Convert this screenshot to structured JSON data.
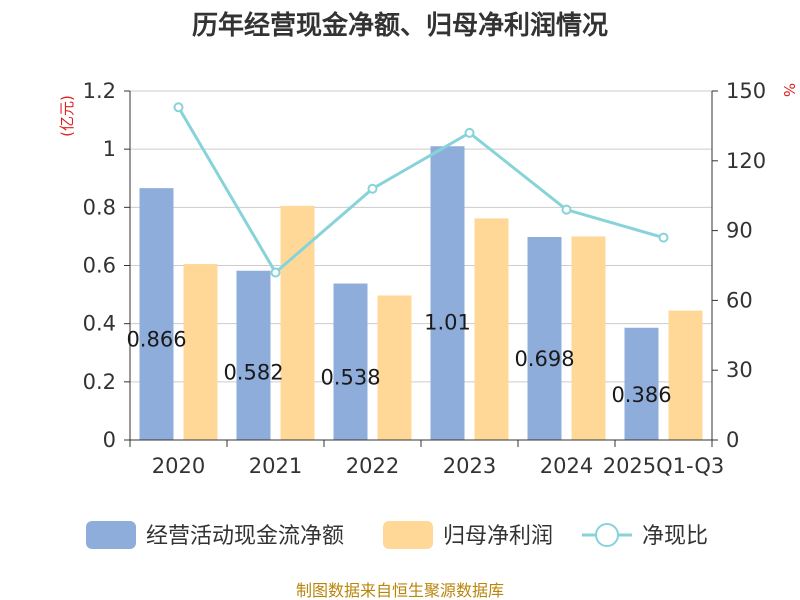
{
  "chart_data": {
    "type": "bar",
    "title": "历年经营现金净额、归母净利润情况",
    "categories": [
      "2020",
      "2021",
      "2022",
      "2023",
      "2024",
      "2025Q1-Q3"
    ],
    "y_left": {
      "unit": "(亿元)",
      "ylim": [
        0,
        1.2
      ],
      "ticks": [
        "0",
        "0.2",
        "0.4",
        "0.6",
        "0.8",
        "1",
        "1.2"
      ]
    },
    "y_right": {
      "unit": "%",
      "ylim": [
        0,
        150
      ],
      "ticks": [
        "0",
        "30",
        "60",
        "90",
        "120",
        "150"
      ]
    },
    "series": [
      {
        "name": "经营活动现金流净额",
        "type": "bar",
        "axis": "left",
        "color": "#8EADDB",
        "values": [
          0.866,
          0.582,
          0.538,
          1.01,
          0.698,
          0.386
        ],
        "labels": [
          "0.866",
          "0.582",
          "0.538",
          "1.01",
          "0.698",
          "0.386"
        ]
      },
      {
        "name": "归母净利润",
        "type": "bar",
        "axis": "left",
        "color": "#FFD898",
        "values": [
          0.605,
          0.805,
          0.497,
          0.762,
          0.7,
          0.445
        ]
      },
      {
        "name": "净现比",
        "type": "line",
        "axis": "right",
        "color": "#86D3D9",
        "values": [
          143,
          72,
          108,
          132,
          99,
          87
        ]
      }
    ],
    "grid": true,
    "legend": "bottom"
  },
  "footer": {
    "source": "制图数据来自恒生聚源数据库"
  }
}
